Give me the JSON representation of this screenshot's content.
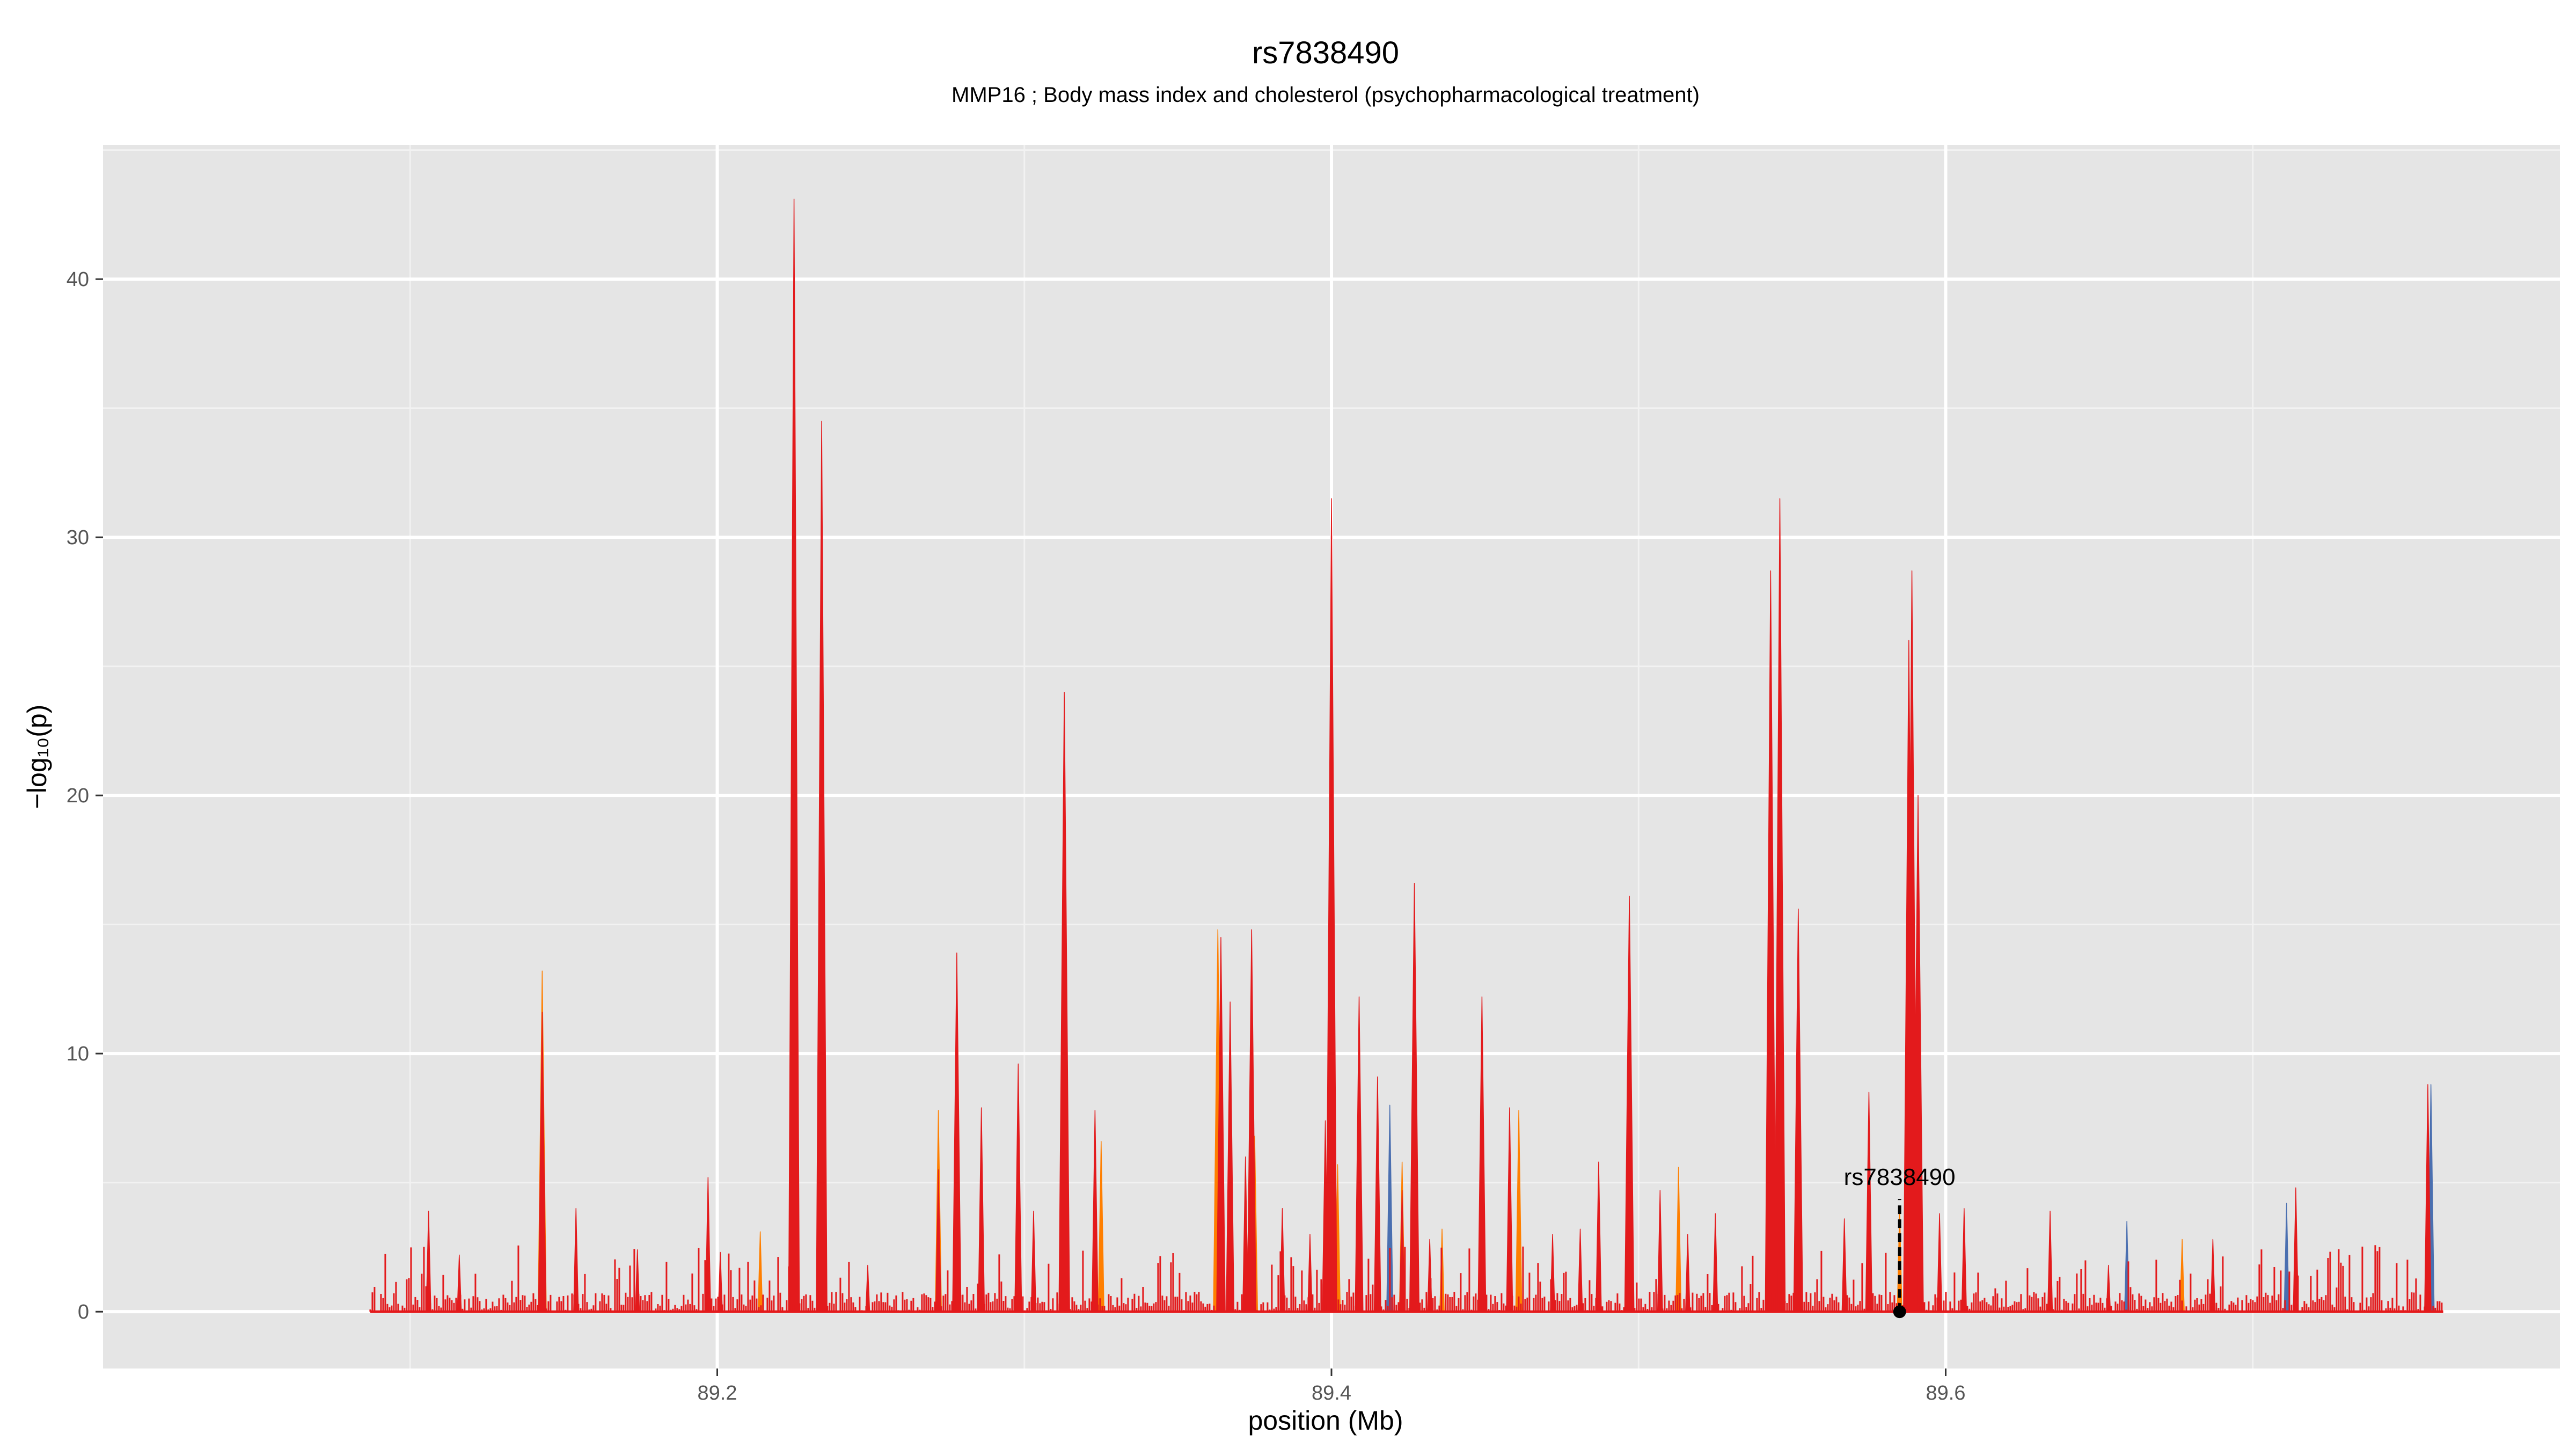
{
  "chart_data": {
    "type": "area",
    "title": "rs7838490",
    "subtitle": "MMP16 ; Body mass index and cholesterol (psychopharmacological treatment)",
    "xlabel": "position (Mb)",
    "ylabel": "−log₁₀(p)",
    "xlim": [
      89.0,
      89.8
    ],
    "ylim": [
      -2.2,
      45.2
    ],
    "x_ticks": [
      89.2,
      89.4,
      89.6
    ],
    "x_tick_labels": [
      "89.2",
      "89.4",
      "89.6"
    ],
    "y_ticks": [
      0,
      10,
      20,
      30,
      40
    ],
    "y_tick_labels": [
      "0",
      "10",
      "20",
      "30",
      "40"
    ],
    "grid": true,
    "legend": "none",
    "colors": {
      "panel": "#e5e5e5",
      "grid_major": "#ffffff",
      "grid_minor": "#f2f2f2",
      "primary": "#e31a1c",
      "secondary": "#ff7f00",
      "tertiary": "#4a6fb0"
    },
    "series": [
      {
        "color": "#4a6fb0",
        "x": [
          89.419,
          89.659,
          89.714,
          89.711,
          89.758
        ],
        "values": [
          8.0,
          3.5,
          2.6,
          4.2,
          8.8
        ]
      },
      {
        "color": "#ff7f00",
        "x": [
          89.143,
          89.197,
          89.214,
          89.272,
          89.298,
          89.325,
          89.363,
          89.375,
          89.402,
          89.423,
          89.436,
          89.461,
          89.513,
          89.545,
          89.585,
          89.677
        ],
        "values": [
          13.2,
          4.5,
          3.1,
          7.8,
          9.1,
          6.6,
          14.8,
          6.8,
          5.7,
          5.8,
          3.2,
          7.8,
          5.6,
          8.5,
          4.0,
          2.8
        ]
      },
      {
        "color": "#e31a1c",
        "x": [
          89.106,
          89.116,
          89.143,
          89.154,
          89.174,
          89.197,
          89.201,
          89.225,
          89.234,
          89.249,
          89.272,
          89.278,
          89.286,
          89.298,
          89.303,
          89.313,
          89.323,
          89.364,
          89.367,
          89.372,
          89.374,
          89.384,
          89.393,
          89.398,
          89.4,
          89.409,
          89.415,
          89.423,
          89.427,
          89.432,
          89.449,
          89.458,
          89.472,
          89.481,
          89.487,
          89.497,
          89.507,
          89.516,
          89.525,
          89.543,
          89.546,
          89.552,
          89.567,
          89.575,
          89.588,
          89.589,
          89.591,
          89.598,
          89.606,
          89.634,
          89.653,
          89.687,
          89.714,
          89.757
        ],
        "values": [
          3.9,
          2.2,
          11.6,
          4.0,
          2.4,
          5.2,
          2.3,
          43.1,
          34.5,
          1.8,
          5.5,
          13.9,
          7.9,
          9.6,
          3.9,
          24.0,
          7.8,
          14.5,
          12.0,
          6.0,
          14.8,
          4.0,
          3.0,
          7.4,
          31.5,
          12.2,
          9.1,
          4.7,
          16.6,
          2.8,
          12.2,
          7.9,
          3.0,
          3.2,
          5.8,
          16.1,
          4.7,
          3.0,
          3.8,
          28.7,
          31.5,
          15.6,
          3.6,
          8.5,
          26.0,
          28.7,
          20.0,
          3.8,
          4.0,
          3.9,
          1.8,
          2.8,
          4.8,
          8.8
        ]
      }
    ],
    "highlight": {
      "label": "rs7838490",
      "x": 89.585,
      "y": 0
    }
  }
}
